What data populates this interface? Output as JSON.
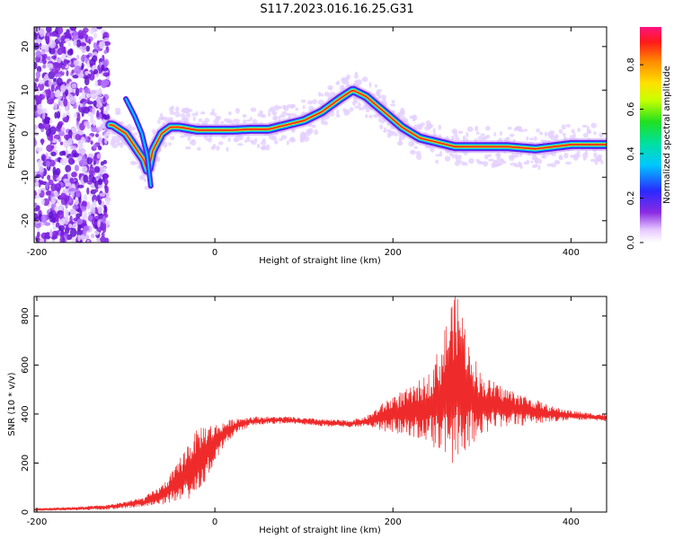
{
  "title": "S117.2023.016.16.25.G31",
  "chart_data": [
    {
      "type": "heatmap",
      "xlabel": "Height of straight line (km)",
      "ylabel": "Frequency (Hz)",
      "xlim": [
        -203,
        440
      ],
      "ylim": [
        -25,
        24.5
      ],
      "xticks": [
        -200,
        0,
        200,
        400
      ],
      "yticks": [
        -20,
        -10,
        0,
        10,
        20
      ],
      "colorbar": {
        "label": "Normalized spectral amplitude",
        "range": [
          0,
          0.97
        ],
        "ticks": [
          0.0,
          0.2,
          0.4,
          0.6,
          0.8
        ]
      },
      "ridge": {
        "x": [
          -115,
          -100,
          -90,
          -80,
          -75,
          -70,
          -60,
          -50,
          -40,
          -20,
          0,
          20,
          40,
          60,
          80,
          100,
          120,
          140,
          155,
          170,
          190,
          210,
          230,
          250,
          270,
          300,
          330,
          360,
          400,
          440
        ],
        "y": [
          2,
          0,
          -3,
          -6,
          -9,
          -4,
          0,
          1.5,
          1.5,
          0.8,
          0.8,
          0.8,
          1,
          1,
          2,
          3,
          5,
          8,
          10,
          8.5,
          5,
          1.5,
          -1,
          -2,
          -3,
          -3,
          -3,
          -3.5,
          -2.5,
          -2.5
        ]
      },
      "noise_region_x": [
        -203,
        -120
      ]
    },
    {
      "type": "line",
      "xlabel": "Height of straight line (km)",
      "ylabel": "SNR (10 * v/v)",
      "xlim": [
        -203,
        440
      ],
      "ylim": [
        0,
        880
      ],
      "xticks": [
        -200,
        0,
        200,
        400
      ],
      "yticks": [
        0,
        200,
        400,
        600,
        800
      ],
      "color": "#ee2a2a",
      "envelope": {
        "x": [
          -203,
          -150,
          -120,
          -100,
          -80,
          -60,
          -45,
          -30,
          -15,
          0,
          10,
          25,
          40,
          60,
          80,
          100,
          120,
          150,
          170,
          190,
          200,
          220,
          240,
          255,
          265,
          275,
          285,
          300,
          320,
          340,
          360,
          380,
          400,
          420,
          440
        ],
        "y": [
          10,
          15,
          20,
          30,
          40,
          70,
          110,
          170,
          230,
          280,
          320,
          355,
          370,
          375,
          375,
          370,
          365,
          360,
          370,
          390,
          400,
          410,
          430,
          460,
          520,
          560,
          480,
          440,
          430,
          420,
          410,
          400,
          395,
          390,
          385
        ],
        "spread": [
          5,
          8,
          10,
          15,
          20,
          40,
          70,
          120,
          130,
          80,
          50,
          30,
          20,
          15,
          15,
          15,
          15,
          15,
          20,
          60,
          80,
          100,
          140,
          240,
          360,
          330,
          220,
          120,
          90,
          70,
          50,
          30,
          20,
          15,
          15
        ]
      }
    }
  ]
}
